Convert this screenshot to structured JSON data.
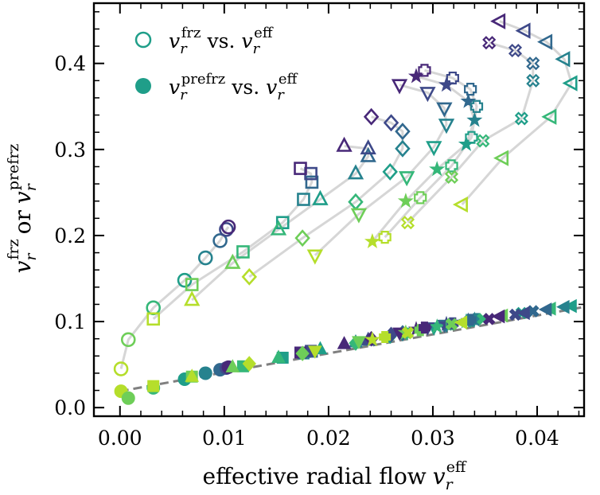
{
  "chart_data": {
    "type": "scatter",
    "xlabel": "effective radial flow v_r^eff",
    "xlabel_text": "effective radial flow",
    "xlabel_var": "v",
    "xlabel_sub": "r",
    "xlabel_sup": "eff",
    "ylabel": "v_r^frz or v_r^prefrz",
    "xlim": [
      -0.0025,
      0.0445
    ],
    "ylim": [
      -0.01,
      0.47
    ],
    "xticks": [
      0.0,
      0.01,
      0.02,
      0.03,
      0.04
    ],
    "xtick_labels": [
      "0.00",
      "0.01",
      "0.02",
      "0.03",
      "0.04"
    ],
    "yticks": [
      0.0,
      0.1,
      0.2,
      0.3,
      0.4
    ],
    "ytick_labels": [
      "0.0",
      "0.1",
      "0.2",
      "0.3",
      "0.4"
    ],
    "legend": {
      "position": "top-left",
      "entries": [
        {
          "marker": "open-circle",
          "var": "v",
          "sub": "r",
          "sup": "frz",
          "middle": "vs.",
          "var2": "v",
          "sub2": "r",
          "sup2": "eff"
        },
        {
          "marker": "filled-circle",
          "var": "v",
          "sub": "r",
          "sup": "prefrz",
          "middle": "vs.",
          "var2": "v",
          "sub2": "r",
          "sup2": "eff"
        }
      ]
    },
    "marker_types": [
      "circle",
      "square",
      "triangle-up",
      "diamond",
      "triangle-down",
      "star",
      "plus",
      "x",
      "triangle-left"
    ],
    "frz_series": [
      {
        "marker": "circle",
        "points": [
          [
            0.0001,
            0.045
          ],
          [
            0.0008,
            0.079
          ],
          [
            0.0032,
            0.116
          ],
          [
            0.0062,
            0.148
          ],
          [
            0.0082,
            0.174
          ],
          [
            0.0096,
            0.194
          ],
          [
            0.0102,
            0.207
          ],
          [
            0.0104,
            0.21
          ]
        ]
      },
      {
        "marker": "square",
        "points": [
          [
            0.0032,
            0.103
          ],
          [
            0.0069,
            0.143
          ],
          [
            0.0118,
            0.181
          ],
          [
            0.0156,
            0.215
          ],
          [
            0.0176,
            0.242
          ],
          [
            0.0184,
            0.262
          ],
          [
            0.0183,
            0.272
          ],
          [
            0.0173,
            0.278
          ]
        ]
      },
      {
        "marker": "triangle-up",
        "points": [
          [
            0.0069,
            0.125
          ],
          [
            0.0108,
            0.168
          ],
          [
            0.0152,
            0.207
          ],
          [
            0.0192,
            0.242
          ],
          [
            0.0226,
            0.272
          ],
          [
            0.0238,
            0.292
          ],
          [
            0.0238,
            0.301
          ],
          [
            0.0215,
            0.304
          ]
        ]
      },
      {
        "marker": "diamond",
        "points": [
          [
            0.0124,
            0.152
          ],
          [
            0.0175,
            0.197
          ],
          [
            0.0226,
            0.239
          ],
          [
            0.0259,
            0.274
          ],
          [
            0.0271,
            0.301
          ],
          [
            0.0271,
            0.321
          ],
          [
            0.026,
            0.331
          ],
          [
            0.0241,
            0.338
          ]
        ]
      },
      {
        "marker": "triangle-down",
        "points": [
          [
            0.0187,
            0.177
          ],
          [
            0.0229,
            0.225
          ],
          [
            0.0275,
            0.268
          ],
          [
            0.0301,
            0.303
          ],
          [
            0.0313,
            0.329
          ],
          [
            0.0311,
            0.348
          ],
          [
            0.0295,
            0.366
          ],
          [
            0.0268,
            0.375
          ]
        ]
      },
      {
        "marker": "star",
        "points": [
          [
            0.0242,
            0.193
          ],
          [
            0.0274,
            0.24
          ],
          [
            0.0304,
            0.277
          ],
          [
            0.0332,
            0.306
          ],
          [
            0.034,
            0.334
          ],
          [
            0.0334,
            0.356
          ],
          [
            0.0313,
            0.375
          ],
          [
            0.0284,
            0.385
          ]
        ]
      },
      {
        "marker": "plus",
        "points": [
          [
            0.0254,
            0.198
          ],
          [
            0.0288,
            0.244
          ],
          [
            0.0318,
            0.281
          ],
          [
            0.0337,
            0.314
          ],
          [
            0.0342,
            0.35
          ],
          [
            0.0336,
            0.37
          ],
          [
            0.0319,
            0.383
          ],
          [
            0.0292,
            0.392
          ]
        ]
      },
      {
        "marker": "x",
        "points": [
          [
            0.0276,
            0.215
          ],
          [
            0.0318,
            0.268
          ],
          [
            0.0348,
            0.31
          ],
          [
            0.0385,
            0.336
          ],
          [
            0.0396,
            0.38
          ],
          [
            0.0396,
            0.4
          ],
          [
            0.0379,
            0.415
          ],
          [
            0.0354,
            0.424
          ]
        ]
      },
      {
        "marker": "triangle-left",
        "points": [
          [
            0.0328,
            0.236
          ],
          [
            0.0367,
            0.29
          ],
          [
            0.0413,
            0.338
          ],
          [
            0.0433,
            0.377
          ],
          [
            0.0426,
            0.405
          ],
          [
            0.0409,
            0.425
          ],
          [
            0.0388,
            0.438
          ],
          [
            0.0364,
            0.449
          ]
        ]
      }
    ],
    "prefrz_series": [
      {
        "marker": "circle",
        "points": [
          [
            0.0001,
            0.019
          ],
          [
            0.0008,
            0.011
          ],
          [
            0.0032,
            0.023
          ],
          [
            0.0062,
            0.033
          ],
          [
            0.0082,
            0.04
          ],
          [
            0.0096,
            0.044
          ],
          [
            0.0102,
            0.046
          ],
          [
            0.0104,
            0.047
          ]
        ]
      },
      {
        "marker": "square",
        "points": [
          [
            0.0032,
            0.025
          ],
          [
            0.0069,
            0.036
          ],
          [
            0.0118,
            0.048
          ],
          [
            0.0156,
            0.058
          ],
          [
            0.0176,
            0.063
          ],
          [
            0.0184,
            0.065
          ],
          [
            0.0183,
            0.066
          ],
          [
            0.0173,
            0.064
          ]
        ]
      },
      {
        "marker": "triangle-up",
        "points": [
          [
            0.0069,
            0.036
          ],
          [
            0.0108,
            0.047
          ],
          [
            0.0152,
            0.058
          ],
          [
            0.0192,
            0.068
          ],
          [
            0.0226,
            0.076
          ],
          [
            0.0238,
            0.078
          ],
          [
            0.0238,
            0.079
          ],
          [
            0.0215,
            0.074
          ]
        ]
      },
      {
        "marker": "diamond",
        "points": [
          [
            0.0124,
            0.051
          ],
          [
            0.0175,
            0.063
          ],
          [
            0.0226,
            0.075
          ],
          [
            0.0259,
            0.083
          ],
          [
            0.0271,
            0.086
          ],
          [
            0.0271,
            0.087
          ],
          [
            0.026,
            0.085
          ],
          [
            0.0241,
            0.08
          ]
        ]
      },
      {
        "marker": "triangle-down",
        "points": [
          [
            0.0187,
            0.066
          ],
          [
            0.0229,
            0.077
          ],
          [
            0.0275,
            0.087
          ],
          [
            0.0301,
            0.093
          ],
          [
            0.0313,
            0.096
          ],
          [
            0.0311,
            0.096
          ],
          [
            0.0295,
            0.093
          ],
          [
            0.0268,
            0.087
          ]
        ]
      },
      {
        "marker": "star",
        "points": [
          [
            0.0242,
            0.079
          ],
          [
            0.0274,
            0.087
          ],
          [
            0.0304,
            0.094
          ],
          [
            0.0332,
            0.1
          ],
          [
            0.034,
            0.102
          ],
          [
            0.0334,
            0.101
          ],
          [
            0.0313,
            0.097
          ],
          [
            0.0284,
            0.091
          ]
        ]
      },
      {
        "marker": "plus",
        "points": [
          [
            0.0254,
            0.082
          ],
          [
            0.0288,
            0.09
          ],
          [
            0.0318,
            0.097
          ],
          [
            0.0337,
            0.101
          ],
          [
            0.0342,
            0.103
          ],
          [
            0.0336,
            0.102
          ],
          [
            0.0319,
            0.098
          ],
          [
            0.0292,
            0.093
          ]
        ]
      },
      {
        "marker": "x",
        "points": [
          [
            0.0276,
            0.087
          ],
          [
            0.0318,
            0.097
          ],
          [
            0.0348,
            0.103
          ],
          [
            0.0385,
            0.11
          ],
          [
            0.0396,
            0.112
          ],
          [
            0.0396,
            0.112
          ],
          [
            0.0379,
            0.108
          ],
          [
            0.0354,
            0.103
          ]
        ]
      },
      {
        "marker": "triangle-left",
        "points": [
          [
            0.0328,
            0.099
          ],
          [
            0.0367,
            0.107
          ],
          [
            0.0413,
            0.115
          ],
          [
            0.0433,
            0.118
          ],
          [
            0.0426,
            0.117
          ],
          [
            0.0409,
            0.114
          ],
          [
            0.0388,
            0.11
          ],
          [
            0.0364,
            0.106
          ]
        ]
      }
    ],
    "fit_line": {
      "style": "dashed",
      "color": "#808080",
      "points": [
        [
          0.0,
          0.019
        ],
        [
          0.0445,
          0.117
        ]
      ]
    },
    "path_color": "#d6d6d6",
    "viridis_colors": [
      "#b5de2b",
      "#6ece58",
      "#35b779",
      "#1f9e89",
      "#26828e",
      "#31688e",
      "#3e4989",
      "#482878"
    ]
  }
}
